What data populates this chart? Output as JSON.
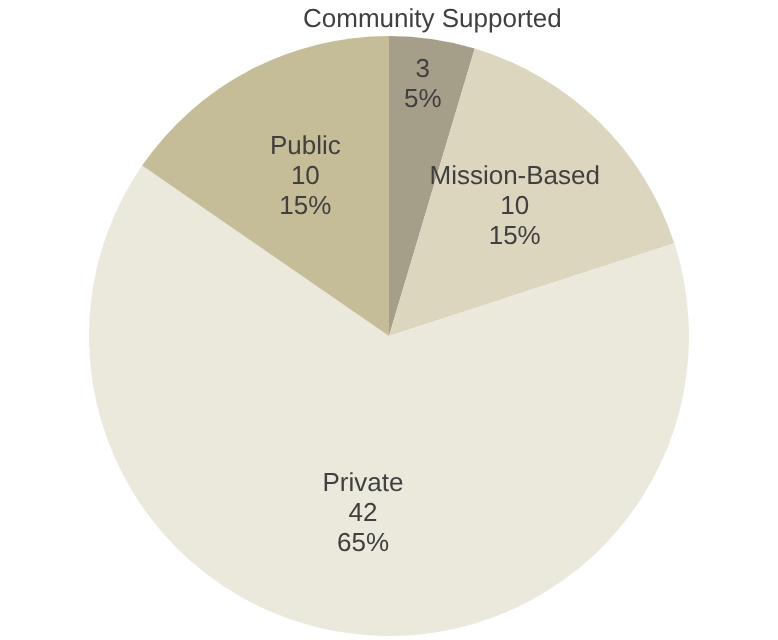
{
  "chart_data": {
    "type": "pie",
    "categories": [
      "Community Supported",
      "Mission-Based",
      "Private",
      "Public"
    ],
    "values": [
      3,
      10,
      42,
      10
    ],
    "colors": [
      "#a59f8a",
      "#dcd6bf",
      "#ebe8dc",
      "#c4bd97"
    ],
    "value_labels": [
      "3\n5%",
      "10\n15%",
      "42\n65%",
      "10\n15%"
    ],
    "legend": false
  }
}
